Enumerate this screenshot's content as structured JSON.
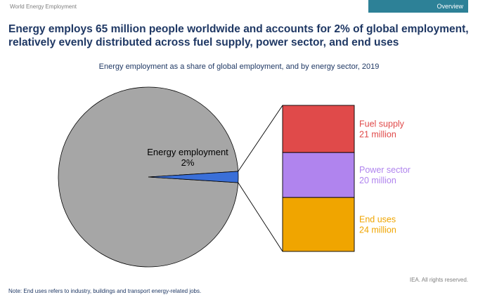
{
  "header": {
    "section_label": "World Energy Employment",
    "tab_label": "Overview"
  },
  "headline": "Energy employs 65 million people worldwide and accounts for 2% of global employment, relatively evenly distributed across fuel supply, power sector, and end uses",
  "chart_data": {
    "type": "pie",
    "title": "Energy employment as a share of global employment, and by energy sector, 2019",
    "pie": {
      "slices": [
        {
          "name": "Energy employment",
          "value_label": "2%",
          "value": 2,
          "color": "#3a6fd8"
        },
        {
          "name": "",
          "value": 98,
          "color": "#a6a6a6"
        }
      ]
    },
    "breakdown": {
      "type": "stacked_bar",
      "unit": "million",
      "segments": [
        {
          "name": "Fuel supply",
          "value_label": "21 million",
          "value": 21,
          "color": "#e04a4a"
        },
        {
          "name": "Power sector",
          "value_label": "20 million",
          "value": 20,
          "color": "#b084ee"
        },
        {
          "name": "End uses",
          "value_label": "24 million",
          "value": 24,
          "color": "#f0a500"
        }
      ]
    }
  },
  "footer": {
    "rights": "IEA. All rights reserved.",
    "note": "Note: End uses refers to industry, buildings and transport energy-related jobs."
  }
}
